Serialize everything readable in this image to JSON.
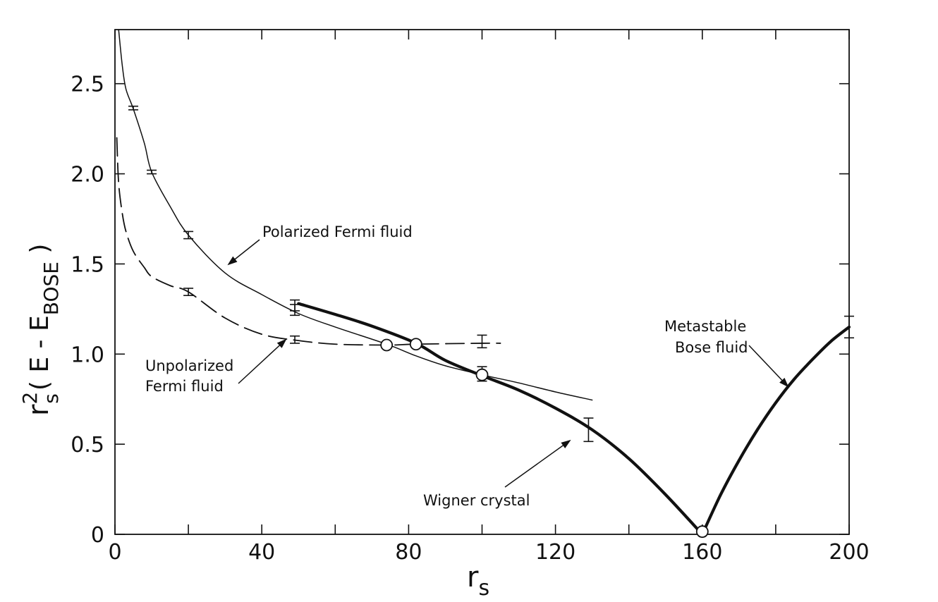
{
  "chart_data": {
    "type": "line",
    "xlim": [
      0,
      200
    ],
    "ylim": [
      0,
      2.8
    ],
    "x_ticks": [
      0,
      40,
      80,
      120,
      160,
      200
    ],
    "x_tick_labels": [
      "0",
      "40",
      "80",
      "120",
      "160",
      "200"
    ],
    "y_ticks": [
      0,
      0.5,
      1.0,
      1.5,
      2.0,
      2.5
    ],
    "y_tick_labels": [
      "0",
      "0.5",
      "1.0",
      "1.5",
      "2.0",
      "2.5"
    ],
    "xlabel": {
      "main": "r",
      "sub": "s"
    },
    "ylabel": {
      "r": "r",
      "sup": "2",
      "sub": "s",
      "paren_open": "( E - E",
      "sub2": "BOSE",
      "paren_close": " )"
    },
    "grid": false,
    "series": [
      {
        "key": "polarized",
        "style": "thin-solid",
        "x": [
          1,
          2,
          3,
          5,
          8,
          10,
          15,
          20,
          30,
          40,
          50,
          60,
          74,
          82,
          90,
          100,
          110,
          120,
          130
        ],
        "y": [
          2.8,
          2.6,
          2.47,
          2.36,
          2.17,
          2.01,
          1.82,
          1.66,
          1.45,
          1.33,
          1.225,
          1.15,
          1.055,
          0.99,
          0.935,
          0.885,
          0.84,
          0.79,
          0.745
        ],
        "error_bars": [
          {
            "x": 5,
            "y": 2.365,
            "err": 0.01
          },
          {
            "x": 10,
            "y": 2.01,
            "err": 0.01
          },
          {
            "x": 20,
            "y": 1.66,
            "err": 0.02
          },
          {
            "x": 49,
            "y": 1.245,
            "err": 0.03
          }
        ]
      },
      {
        "key": "unpolarized",
        "style": "dashed",
        "x": [
          0.5,
          1,
          2,
          3,
          5,
          8,
          10,
          15,
          20,
          30,
          40,
          50,
          60,
          74,
          82,
          100,
          105
        ],
        "y": [
          2.2,
          1.95,
          1.78,
          1.68,
          1.57,
          1.48,
          1.43,
          1.38,
          1.345,
          1.2,
          1.11,
          1.075,
          1.055,
          1.05,
          1.055,
          1.06,
          1.06
        ],
        "error_bars": [
          {
            "x": 20,
            "y": 1.345,
            "err": 0.02
          },
          {
            "x": 49,
            "y": 1.08,
            "err": 0.02
          },
          {
            "x": 100,
            "y": 1.07,
            "err": 0.035
          }
        ]
      },
      {
        "key": "wigner",
        "style": "thick-solid",
        "x": [
          50,
          60,
          70,
          82,
          90,
          100,
          110,
          120,
          130,
          140,
          150,
          160
        ],
        "y": [
          1.28,
          1.22,
          1.155,
          1.06,
          0.965,
          0.88,
          0.8,
          0.7,
          0.58,
          0.42,
          0.22,
          0.0
        ],
        "error_bars": [
          {
            "x": 100,
            "y": 0.89,
            "err": 0.04
          },
          {
            "x": 129,
            "y": 0.58,
            "err": 0.065
          },
          {
            "x": 49,
            "y": 1.27,
            "err": 0.03
          }
        ]
      },
      {
        "key": "bose",
        "style": "thick-solid",
        "x": [
          160,
          165,
          170,
          175,
          180,
          185,
          190,
          195,
          200
        ],
        "y": [
          0.0,
          0.22,
          0.41,
          0.58,
          0.73,
          0.86,
          0.97,
          1.07,
          1.15
        ],
        "error_bars": [
          {
            "x": 200,
            "y": 1.15,
            "err": 0.06
          }
        ]
      }
    ],
    "circles": [
      {
        "x": 74,
        "y": 1.05
      },
      {
        "x": 82,
        "y": 1.055
      },
      {
        "x": 100,
        "y": 0.885
      },
      {
        "x": 160,
        "y": 0.015
      }
    ],
    "annotations": {
      "polarized": {
        "lines": [
          "Polarized Fermi fluid"
        ],
        "arrow_to": [
          30,
          1.45
        ]
      },
      "unpolarized": {
        "lines": [
          "Unpolarized",
          "Fermi fluid"
        ],
        "arrow_to": [
          47,
          1.08
        ]
      },
      "wigner": {
        "lines": [
          "Wigner crystal"
        ],
        "arrow_to": [
          124,
          0.66
        ]
      },
      "bose": {
        "lines": [
          "Metastable",
          "Bose fluid"
        ],
        "arrow_to": [
          183,
          0.83
        ]
      }
    }
  }
}
